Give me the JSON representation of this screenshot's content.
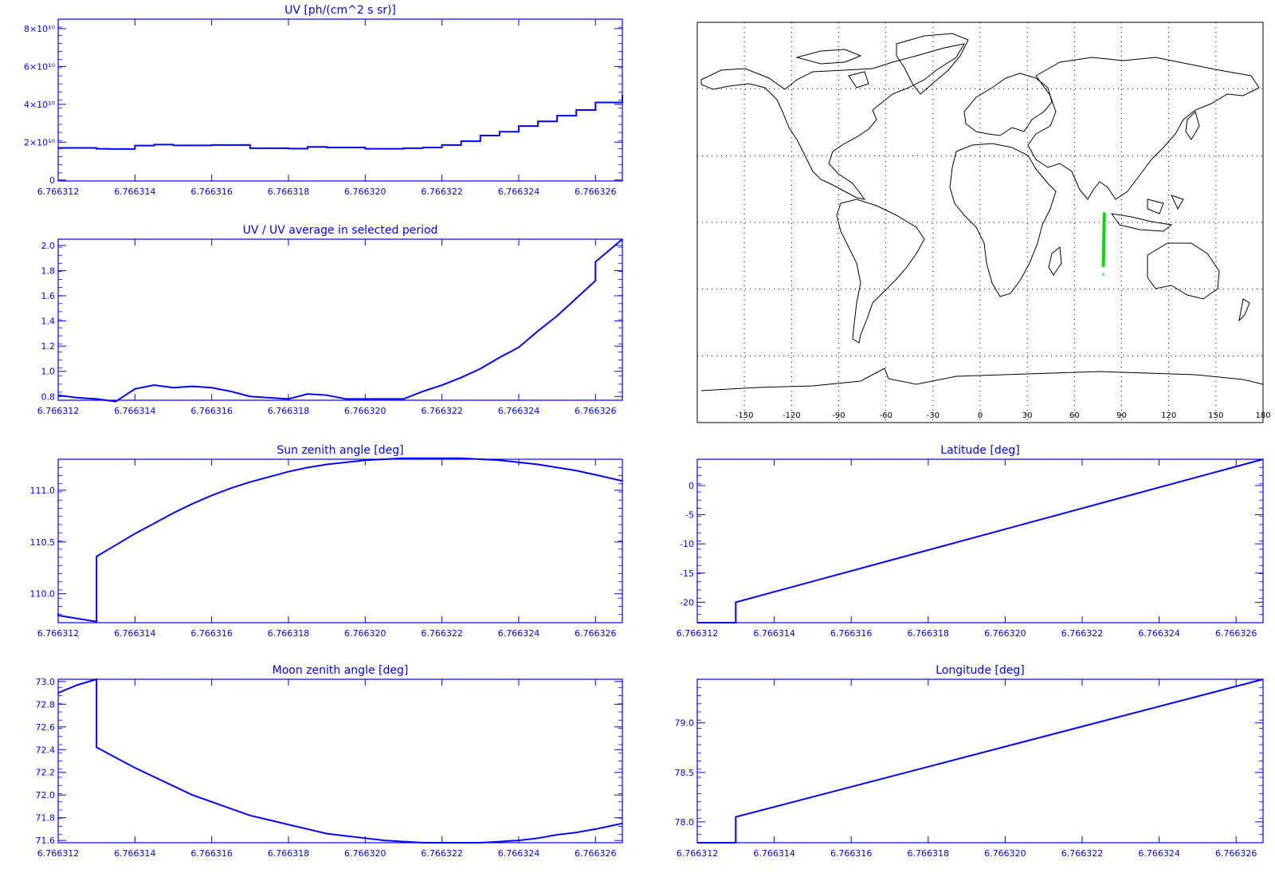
{
  "colors": {
    "plot": "#0000ff",
    "track": "#00dd00",
    "map": "#000000"
  },
  "chart_data": [
    {
      "id": "uv",
      "type": "line",
      "title": "UV [ph/(cm^2 s sr)]",
      "xlabel": "",
      "ylabel": "",
      "xlim": [
        6.766312,
        6.7663267
      ],
      "ylim": [
        -500000000,
        85000000000
      ],
      "x_ticks": [
        "6.766312",
        "6.766314",
        "6.766316",
        "6.766318",
        "6.766320",
        "6.766322",
        "6.766324",
        "6.766326"
      ],
      "y_ticks": [
        "0",
        "2×10¹⁰",
        "4×10¹⁰",
        "6×10¹⁰",
        "8×10¹⁰"
      ],
      "step": true,
      "x": [
        6.766312,
        6.766313,
        6.7663133,
        6.766314,
        6.7663145,
        6.766315,
        6.766316,
        6.766317,
        6.766318,
        6.7663185,
        6.766319,
        6.76632,
        6.766321,
        6.7663215,
        6.766322,
        6.7663225,
        6.766323,
        6.7663235,
        6.766324,
        6.7663245,
        6.766325,
        6.7663255,
        6.766326,
        6.7663267
      ],
      "y": [
        17000000000,
        16500000000,
        16400000000,
        18200000000,
        18700000000,
        18300000000,
        18500000000,
        16800000000,
        16600000000,
        17500000000,
        17200000000,
        16500000000,
        16800000000,
        17200000000,
        18500000000,
        20500000000,
        23500000000,
        25500000000,
        28500000000,
        31000000000,
        34000000000,
        37000000000,
        41000000000,
        45000000000
      ]
    },
    {
      "id": "uv-ratio",
      "type": "line",
      "title": "UV / UV average in selected period",
      "xlabel": "",
      "ylabel": "",
      "xlim": [
        6.766312,
        6.7663267
      ],
      "ylim": [
        0.77,
        2.05
      ],
      "x_ticks": [
        "6.766312",
        "6.766314",
        "6.766316",
        "6.766318",
        "6.766320",
        "6.766322",
        "6.766324",
        "6.766326"
      ],
      "y_ticks": [
        "0.8",
        "1.0",
        "1.2",
        "1.4",
        "1.6",
        "1.8",
        "2.0"
      ],
      "x": [
        6.766312,
        6.7663125,
        6.766313,
        6.7663135,
        6.766314,
        6.7663145,
        6.766315,
        6.7663155,
        6.766316,
        6.7663165,
        6.766317,
        6.7663175,
        6.766318,
        6.7663185,
        6.766319,
        6.7663195,
        6.76632,
        6.7663205,
        6.766321,
        6.7663215,
        6.766322,
        6.7663225,
        6.766323,
        6.7663235,
        6.766324,
        6.7663245,
        6.766325,
        6.7663255,
        6.766326,
        6.766326,
        6.7663267
      ],
      "y": [
        0.81,
        0.79,
        0.78,
        0.76,
        0.86,
        0.89,
        0.87,
        0.88,
        0.87,
        0.84,
        0.8,
        0.79,
        0.78,
        0.82,
        0.81,
        0.78,
        0.78,
        0.78,
        0.78,
        0.84,
        0.89,
        0.95,
        1.02,
        1.11,
        1.19,
        1.32,
        1.44,
        1.58,
        1.72,
        1.87,
        2.05
      ]
    },
    {
      "id": "sun-zenith",
      "type": "line",
      "title": "Sun zenith angle [deg]",
      "xlabel": "",
      "ylabel": "",
      "xlim": [
        6.766312,
        6.7663267
      ],
      "ylim": [
        109.72,
        111.3
      ],
      "x_ticks": [
        "6.766312",
        "6.766314",
        "6.766316",
        "6.766318",
        "6.766320",
        "6.766322",
        "6.766324",
        "6.766326"
      ],
      "y_ticks": [
        "110.0",
        "110.5",
        "111.0"
      ],
      "x": [
        6.766312,
        6.766312,
        6.766313,
        6.766313,
        6.7663135,
        6.766314,
        6.7663145,
        6.766315,
        6.7663155,
        6.766316,
        6.7663165,
        6.766317,
        6.7663175,
        6.766318,
        6.7663185,
        6.766319,
        6.7663195,
        6.76632,
        6.7663205,
        6.766321,
        6.7663215,
        6.766322,
        6.7663225,
        6.766323,
        6.7663235,
        6.766324,
        6.7663245,
        6.766325,
        6.7663255,
        6.766326,
        6.7663267
      ],
      "y": [
        109.81,
        109.79,
        109.73,
        110.36,
        110.47,
        110.58,
        110.68,
        110.78,
        110.87,
        110.95,
        111.02,
        111.08,
        111.13,
        111.18,
        111.22,
        111.25,
        111.27,
        111.29,
        111.3,
        111.31,
        111.31,
        111.31,
        111.31,
        111.3,
        111.29,
        111.27,
        111.25,
        111.22,
        111.19,
        111.15,
        111.09
      ]
    },
    {
      "id": "moon-zenith",
      "type": "line",
      "title": "Moon zenith angle [deg]",
      "xlabel": "",
      "ylabel": "",
      "xlim": [
        6.766312,
        6.7663267
      ],
      "ylim": [
        71.58,
        73.02
      ],
      "x_ticks": [
        "6.766312",
        "6.766314",
        "6.766316",
        "6.766318",
        "6.766320",
        "6.766322",
        "6.766324",
        "6.766326"
      ],
      "y_ticks": [
        "71.6",
        "71.8",
        "72.0",
        "72.2",
        "72.4",
        "72.6",
        "72.8",
        "73.0"
      ],
      "x": [
        6.766312,
        6.7663125,
        6.766313,
        6.766313,
        6.7663135,
        6.766314,
        6.7663145,
        6.766315,
        6.7663155,
        6.766316,
        6.7663165,
        6.766317,
        6.7663175,
        6.766318,
        6.7663185,
        6.766319,
        6.7663195,
        6.76632,
        6.7663205,
        6.766321,
        6.7663215,
        6.766322,
        6.7663225,
        6.766323,
        6.7663235,
        6.766324,
        6.7663245,
        6.766325,
        6.7663255,
        6.766326,
        6.7663267
      ],
      "y": [
        72.9,
        72.97,
        73.02,
        72.42,
        72.33,
        72.24,
        72.16,
        72.08,
        72.0,
        71.94,
        71.88,
        71.82,
        71.78,
        71.74,
        71.7,
        71.66,
        71.64,
        71.62,
        71.6,
        71.59,
        71.58,
        71.58,
        71.58,
        71.58,
        71.59,
        71.6,
        71.62,
        71.65,
        71.67,
        71.7,
        71.75
      ]
    },
    {
      "id": "latitude",
      "type": "line",
      "title": "Latitude [deg]",
      "xlabel": "",
      "ylabel": "",
      "xlim": [
        6.766312,
        6.7663267
      ],
      "ylim": [
        -23.5,
        4.5
      ],
      "x_ticks": [
        "6.766312",
        "6.766314",
        "6.766316",
        "6.766318",
        "6.766320",
        "6.766322",
        "6.766324",
        "6.766326"
      ],
      "y_ticks": [
        "-20",
        "-15",
        "-10",
        "-5",
        "0"
      ],
      "x": [
        6.766312,
        6.766313,
        6.766313,
        6.7663267
      ],
      "y": [
        -23.5,
        -23.5,
        -20.0,
        4.5
      ]
    },
    {
      "id": "longitude",
      "type": "line",
      "title": "Longitude [deg]",
      "xlabel": "",
      "ylabel": "",
      "xlim": [
        6.766312,
        6.7663267
      ],
      "ylim": [
        77.79,
        79.44
      ],
      "x_ticks": [
        "6.766312",
        "6.766314",
        "6.766316",
        "6.766318",
        "6.766320",
        "6.766322",
        "6.766324",
        "6.766326"
      ],
      "y_ticks": [
        "78.0",
        "78.5",
        "79.0"
      ],
      "x": [
        6.766312,
        6.766313,
        6.766313,
        6.7663267
      ],
      "y": [
        77.79,
        77.79,
        78.05,
        79.44
      ]
    }
  ],
  "map": {
    "x_ticks": [
      "-150",
      "-120",
      "-90",
      "-60",
      "-30",
      "0",
      "30",
      "60",
      "90",
      "120",
      "150",
      "180"
    ],
    "xlim": [
      -180,
      180
    ],
    "ylim": [
      -90,
      90
    ],
    "track": {
      "lon": [
        79.0,
        78.4
      ],
      "lat": [
        4.5,
        -20.0
      ]
    },
    "end_marker": "*"
  }
}
